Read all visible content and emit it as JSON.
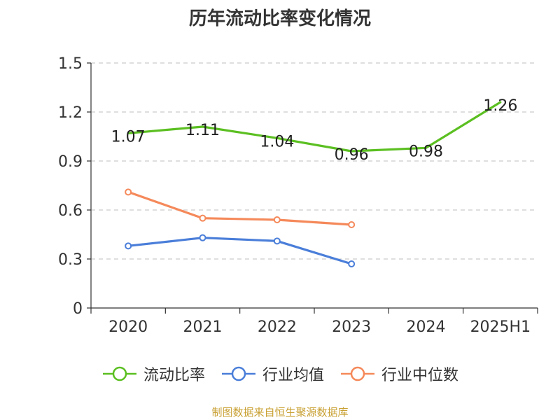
{
  "chart_data": {
    "type": "line",
    "title": "历年流动比率变化情况",
    "xlabel": "",
    "ylabel": "",
    "categories": [
      "2020",
      "2021",
      "2022",
      "2023",
      "2024",
      "2025H1"
    ],
    "ylim": [
      0,
      1.5
    ],
    "yticks": [
      "0",
      "0.3",
      "0.6",
      "0.9",
      "1.2",
      "1.5"
    ],
    "grid": true,
    "legend_position": "bottom",
    "series": [
      {
        "name": "流动比率",
        "color": "#5bbf21",
        "values": [
          1.07,
          1.11,
          1.04,
          0.96,
          0.98,
          1.26
        ],
        "labels": [
          "1.07",
          "1.11",
          "1.04",
          "0.96",
          "0.98",
          "1.26"
        ],
        "markers": false
      },
      {
        "name": "行业均值",
        "color": "#4a7ed9",
        "values": [
          0.38,
          0.43,
          0.41,
          0.27,
          null,
          null
        ],
        "markers": true
      },
      {
        "name": "行业中位数",
        "color": "#f5895a",
        "values": [
          0.71,
          0.55,
          0.54,
          0.51,
          null,
          null
        ],
        "markers": true
      }
    ]
  },
  "source": "制图数据来自恒生聚源数据库"
}
